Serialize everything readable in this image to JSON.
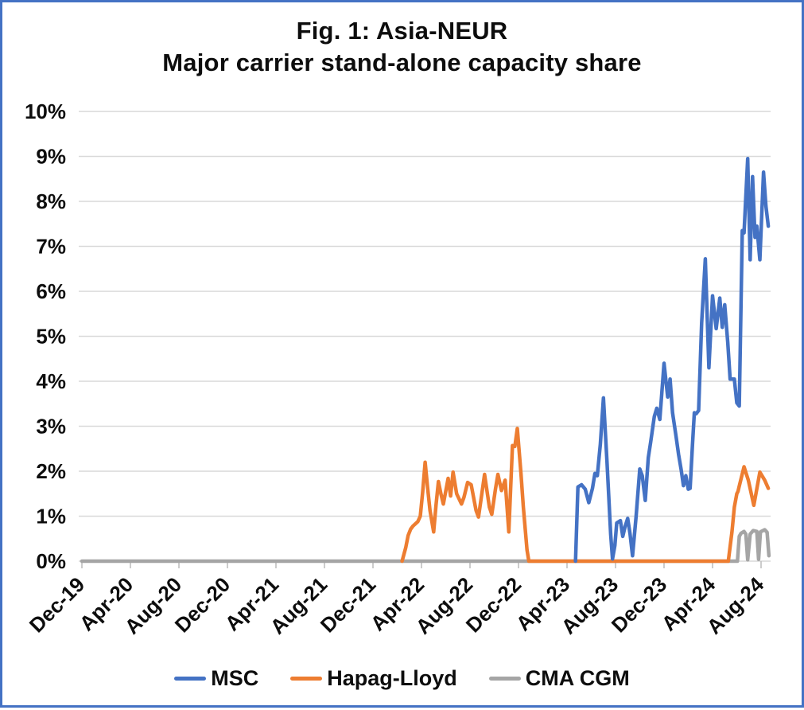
{
  "frame": {
    "border_color": "#4472C4",
    "background": "#FFFFFF"
  },
  "chart_data": {
    "type": "line",
    "title": "Fig. 1: Asia-NEUR",
    "subtitle": "Major carrier stand-alone capacity share",
    "grid": {
      "horizontal": true,
      "vertical": false,
      "color": "#D9D9D9"
    },
    "axis_tick_color": "#BFBFBF",
    "y_axis": {
      "min": 0,
      "max": 10,
      "step": 1,
      "unit": "%",
      "tick_labels": [
        "10%",
        "9%",
        "8%",
        "7%",
        "6%",
        "5%",
        "4%",
        "3%",
        "2%",
        "1%",
        "0%"
      ]
    },
    "x_axis": {
      "unit": "months_since_Dec-2019",
      "months_per_tick": 4,
      "tick_labels": [
        "Dec-19",
        "Apr-20",
        "Aug-20",
        "Dec-20",
        "Apr-21",
        "Aug-21",
        "Dec-21",
        "Apr-22",
        "Aug-22",
        "Dec-22",
        "Apr-23",
        "Aug-23",
        "Dec-23",
        "Apr-24",
        "Aug-24"
      ]
    },
    "legend": {
      "position": "bottom"
    },
    "series": [
      {
        "name": "MSC",
        "color": "#4472C4",
        "points": [
          [
            40.7,
            0
          ],
          [
            40.9,
            1.65
          ],
          [
            41.2,
            1.7
          ],
          [
            41.5,
            1.6
          ],
          [
            41.8,
            1.3
          ],
          [
            42.1,
            1.62
          ],
          [
            42.3,
            1.95
          ],
          [
            42.5,
            1.9
          ],
          [
            42.75,
            2.6
          ],
          [
            43.0,
            3.63
          ],
          [
            43.3,
            2.2
          ],
          [
            43.6,
            0.6
          ],
          [
            43.75,
            0.05
          ],
          [
            43.95,
            0.35
          ],
          [
            44.1,
            0.85
          ],
          [
            44.4,
            0.9
          ],
          [
            44.6,
            0.55
          ],
          [
            44.8,
            0.78
          ],
          [
            45.0,
            0.95
          ],
          [
            45.2,
            0.6
          ],
          [
            45.4,
            0.12
          ],
          [
            45.7,
            1.0
          ],
          [
            46.0,
            2.05
          ],
          [
            46.2,
            1.9
          ],
          [
            46.45,
            1.35
          ],
          [
            46.7,
            2.3
          ],
          [
            46.9,
            2.65
          ],
          [
            47.2,
            3.22
          ],
          [
            47.4,
            3.4
          ],
          [
            47.65,
            3.15
          ],
          [
            48.0,
            4.4
          ],
          [
            48.3,
            3.65
          ],
          [
            48.5,
            4.05
          ],
          [
            48.7,
            3.3
          ],
          [
            49.0,
            2.75
          ],
          [
            49.2,
            2.37
          ],
          [
            49.4,
            2.05
          ],
          [
            49.6,
            1.68
          ],
          [
            49.8,
            1.9
          ],
          [
            50.0,
            1.6
          ],
          [
            50.15,
            1.62
          ],
          [
            50.35,
            2.6
          ],
          [
            50.5,
            3.3
          ],
          [
            50.65,
            3.28
          ],
          [
            50.85,
            3.35
          ],
          [
            51.1,
            5.3
          ],
          [
            51.4,
            6.72
          ],
          [
            51.7,
            4.3
          ],
          [
            52.0,
            5.9
          ],
          [
            52.3,
            5.17
          ],
          [
            52.6,
            5.85
          ],
          [
            52.8,
            5.2
          ],
          [
            53.0,
            5.7
          ],
          [
            53.25,
            4.87
          ],
          [
            53.45,
            4.05
          ],
          [
            53.8,
            4.05
          ],
          [
            54.0,
            3.52
          ],
          [
            54.2,
            3.45
          ],
          [
            54.45,
            7.35
          ],
          [
            54.6,
            7.3
          ],
          [
            54.9,
            8.95
          ],
          [
            55.1,
            6.7
          ],
          [
            55.3,
            8.55
          ],
          [
            55.5,
            7.2
          ],
          [
            55.65,
            7.45
          ],
          [
            55.9,
            6.7
          ],
          [
            56.2,
            8.65
          ],
          [
            56.4,
            7.9
          ],
          [
            56.6,
            7.45
          ]
        ]
      },
      {
        "name": "Hapag-Lloyd",
        "color": "#ED7D31",
        "points": [
          [
            26.4,
            0
          ],
          [
            26.7,
            0.3
          ],
          [
            26.9,
            0.57
          ],
          [
            27.1,
            0.71
          ],
          [
            27.3,
            0.78
          ],
          [
            27.7,
            0.88
          ],
          [
            27.9,
            1.0
          ],
          [
            28.1,
            1.54
          ],
          [
            28.3,
            2.2
          ],
          [
            28.5,
            1.65
          ],
          [
            28.7,
            1.13
          ],
          [
            29.0,
            0.65
          ],
          [
            29.2,
            1.25
          ],
          [
            29.4,
            1.77
          ],
          [
            29.6,
            1.5
          ],
          [
            29.8,
            1.27
          ],
          [
            30.2,
            1.84
          ],
          [
            30.4,
            1.45
          ],
          [
            30.6,
            1.98
          ],
          [
            30.9,
            1.5
          ],
          [
            31.3,
            1.27
          ],
          [
            31.5,
            1.42
          ],
          [
            31.8,
            1.75
          ],
          [
            32.1,
            1.7
          ],
          [
            32.5,
            1.13
          ],
          [
            32.7,
            0.98
          ],
          [
            33.0,
            1.55
          ],
          [
            33.2,
            1.93
          ],
          [
            33.6,
            1.2
          ],
          [
            33.8,
            1.04
          ],
          [
            34.1,
            1.6
          ],
          [
            34.3,
            1.93
          ],
          [
            34.6,
            1.57
          ],
          [
            34.9,
            1.8
          ],
          [
            35.2,
            0.65
          ],
          [
            35.5,
            2.57
          ],
          [
            35.7,
            2.55
          ],
          [
            35.9,
            2.95
          ],
          [
            36.2,
            1.95
          ],
          [
            36.4,
            1.2
          ],
          [
            36.7,
            0.25
          ],
          [
            36.85,
            0
          ],
          [
            53.3,
            0
          ],
          [
            53.6,
            0.65
          ],
          [
            53.8,
            1.2
          ],
          [
            54.0,
            1.5
          ],
          [
            54.1,
            1.55
          ],
          [
            54.25,
            1.72
          ],
          [
            54.6,
            2.1
          ],
          [
            54.95,
            1.8
          ],
          [
            55.4,
            1.24
          ],
          [
            55.9,
            1.98
          ],
          [
            56.3,
            1.8
          ],
          [
            56.6,
            1.62
          ]
        ]
      },
      {
        "name": "CMA CGM",
        "color": "#A5A5A5",
        "points": [
          [
            0,
            0
          ],
          [
            54.05,
            0
          ],
          [
            54.2,
            0.55
          ],
          [
            54.35,
            0.62
          ],
          [
            54.6,
            0.66
          ],
          [
            54.75,
            0.6
          ],
          [
            54.9,
            0.03
          ],
          [
            55.1,
            0.6
          ],
          [
            55.35,
            0.68
          ],
          [
            55.65,
            0.66
          ],
          [
            55.8,
            0.04
          ],
          [
            55.95,
            0.65
          ],
          [
            56.3,
            0.7
          ],
          [
            56.5,
            0.64
          ],
          [
            56.65,
            0.12
          ]
        ]
      }
    ]
  }
}
